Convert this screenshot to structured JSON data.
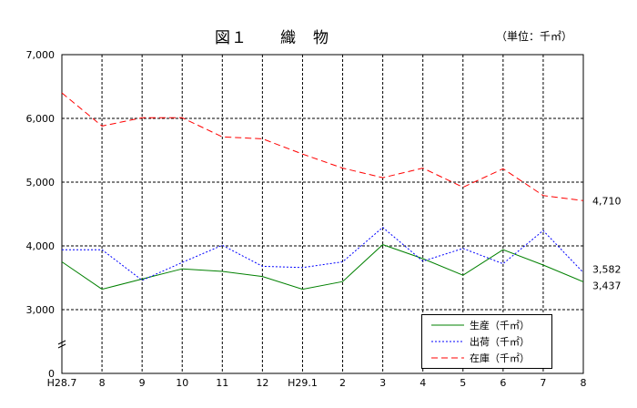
{
  "title": "図１　　織　物",
  "unit": "（単位：千㎡）",
  "chart_data": {
    "type": "line",
    "title": "図１　　織　物",
    "unit": "（単位：千㎡）",
    "x": [
      "H28.7",
      "8",
      "9",
      "10",
      "11",
      "12",
      "H29.1",
      "2",
      "3",
      "4",
      "5",
      "6",
      "7",
      "8"
    ],
    "ylim": [
      0,
      7000
    ],
    "yticks": [
      "0",
      "3,000",
      "4,000",
      "5,000",
      "6,000",
      "7,000"
    ],
    "ytick_values": [
      0,
      3000,
      4000,
      5000,
      6000,
      7000
    ],
    "axis_break": "between 0 and 3,000",
    "grid": true,
    "legend_position": "bottom-right",
    "series": [
      {
        "name": "生産（千㎡）",
        "color": "#008000",
        "style": "solid",
        "values": [
          3750,
          3320,
          3480,
          3640,
          3600,
          3520,
          3320,
          3440,
          4020,
          3800,
          3540,
          3940,
          3700,
          3437
        ]
      },
      {
        "name": "出荷（千㎡）",
        "color": "#0000ff",
        "style": "dotted",
        "values": [
          3940,
          3940,
          3460,
          3740,
          4010,
          3680,
          3660,
          3750,
          4290,
          3760,
          3960,
          3720,
          4240,
          3582
        ]
      },
      {
        "name": "在庫（千㎡）",
        "color": "#ff0000",
        "style": "dashed",
        "values": [
          6400,
          5880,
          6010,
          6010,
          5710,
          5680,
          5440,
          5220,
          5070,
          5220,
          4920,
          5210,
          4790,
          4710
        ]
      }
    ],
    "end_labels": [
      "4,710",
      "3,582",
      "3,437"
    ]
  }
}
